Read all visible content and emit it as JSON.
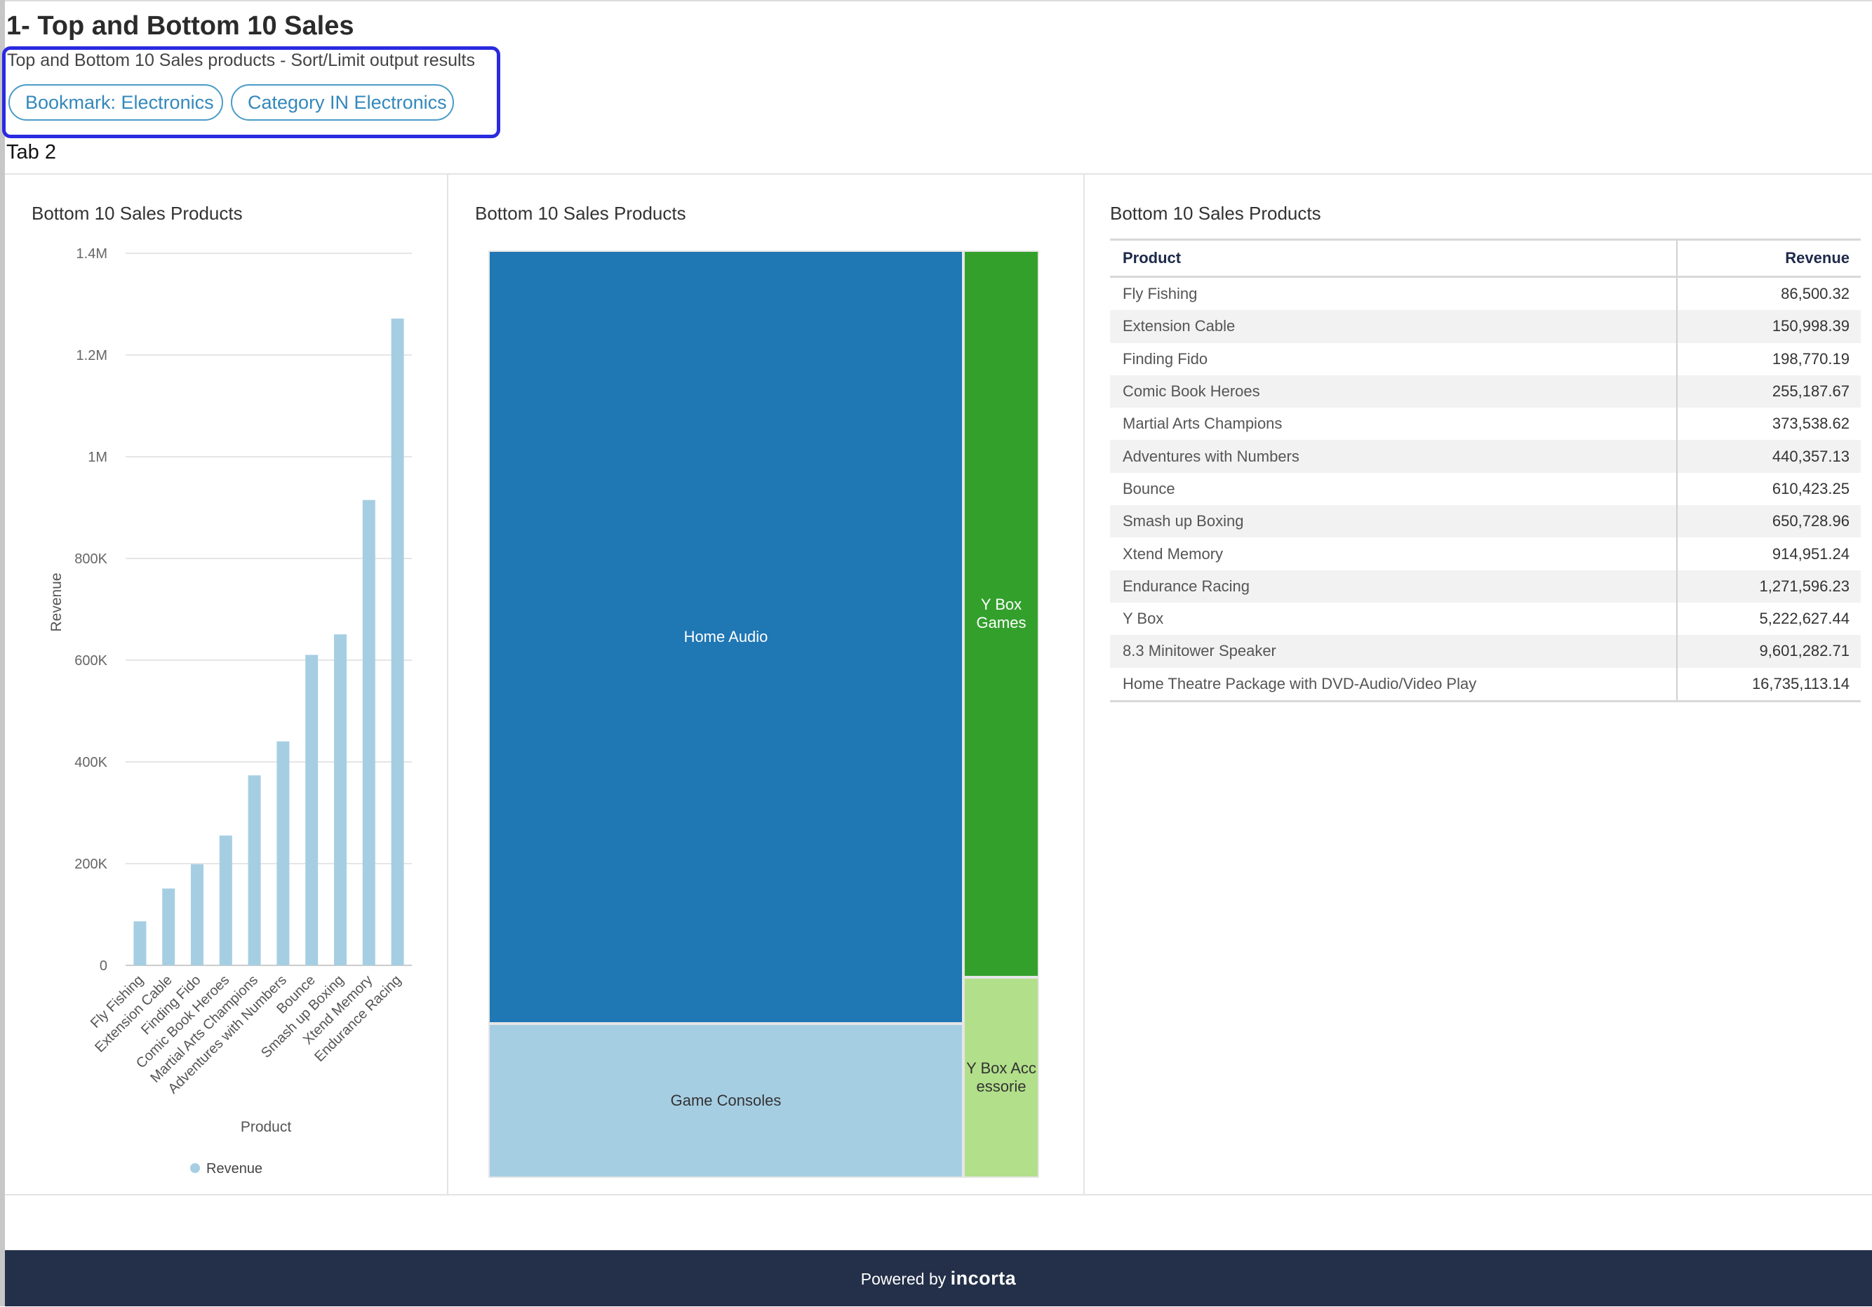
{
  "dashboard": {
    "title": "1- Top and Bottom 10 Sales",
    "description": "Top and Bottom 10 Sales products - Sort/Limit output results",
    "filters": [
      "Bookmark: Electronics",
      "Category IN Electronics"
    ],
    "tab": "Tab 2"
  },
  "bar_panel": {
    "title": "Bottom 10 Sales Products",
    "legend": "Revenue"
  },
  "treemap_panel": {
    "title": "Bottom 10 Sales Products",
    "cells": [
      {
        "label": "Home Audio",
        "color": "#1f77b4",
        "text_color": "light"
      },
      {
        "label": "Game Consoles",
        "color": "#a6cee3",
        "text_color": "dark"
      },
      {
        "label": "Y Box Games",
        "color": "#33a02c",
        "text_color": "light"
      },
      {
        "label": "Y Box Accessorie",
        "color": "#b2df8a",
        "text_color": "dark"
      }
    ]
  },
  "table_panel": {
    "title": "Bottom 10 Sales Products",
    "columns": [
      "Product",
      "Revenue"
    ],
    "rows": [
      [
        "Fly Fishing",
        "86,500.32"
      ],
      [
        "Extension Cable",
        "150,998.39"
      ],
      [
        "Finding Fido",
        "198,770.19"
      ],
      [
        "Comic Book Heroes",
        "255,187.67"
      ],
      [
        "Martial Arts Champions",
        "373,538.62"
      ],
      [
        "Adventures with Numbers",
        "440,357.13"
      ],
      [
        "Bounce",
        "610,423.25"
      ],
      [
        "Smash up Boxing",
        "650,728.96"
      ],
      [
        "Xtend Memory",
        "914,951.24"
      ],
      [
        "Endurance Racing",
        "1,271,596.23"
      ],
      [
        "Y Box",
        "5,222,627.44"
      ],
      [
        "8.3 Minitower Speaker",
        "9,601,282.71"
      ],
      [
        "Home Theatre Package with DVD-Audio/Video Play",
        "16,735,113.14"
      ]
    ]
  },
  "footer": {
    "prefix": "Powered by",
    "brand": "incorta"
  },
  "chart_data": {
    "type": "bar",
    "title": "Bottom 10 Sales Products",
    "xlabel": "Product",
    "ylabel": "Revenue",
    "categories": [
      "Fly Fishing",
      "Extension Cable",
      "Finding Fido",
      "Comic Book Heroes",
      "Martial Arts Champions",
      "Adventures with Numbers",
      "Bounce",
      "Smash up Boxing",
      "Xtend Memory",
      "Endurance Racing"
    ],
    "series": [
      {
        "name": "Revenue",
        "values": [
          86500.32,
          150998.39,
          198770.19,
          255187.67,
          373538.62,
          440357.13,
          610423.25,
          650728.96,
          914951.24,
          1271596.23
        ],
        "color": "#a6cee3"
      }
    ],
    "ylim": [
      0,
      1400000
    ],
    "yticks": [
      0,
      200000,
      400000,
      600000,
      800000,
      1000000,
      1200000,
      1400000
    ],
    "ytick_labels": [
      "0",
      "200K",
      "400K",
      "600K",
      "800K",
      "1M",
      "1.2M",
      "1.4M"
    ],
    "grid": true,
    "legend": "bottom"
  }
}
